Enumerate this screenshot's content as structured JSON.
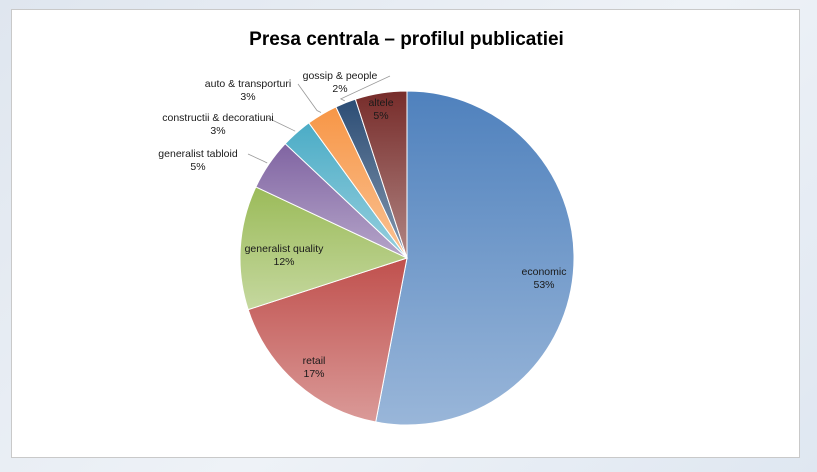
{
  "chart_data": {
    "type": "pie",
    "title": "Presa centrala – profilul publicatiei",
    "slices": [
      {
        "label": "economic",
        "value": 53,
        "display": "53%",
        "color": "#4f81bd"
      },
      {
        "label": "retail",
        "value": 17,
        "display": "17%",
        "color": "#c0504d"
      },
      {
        "label": "generalist quality",
        "value": 12,
        "display": "12%",
        "color": "#9bbb59"
      },
      {
        "label": "generalist tabloid",
        "value": 5,
        "display": "5%",
        "color": "#8064a2"
      },
      {
        "label": "constructii & decoratiuni",
        "value": 3,
        "display": "3%",
        "color": "#4bacc6"
      },
      {
        "label": "auto & transporturi",
        "value": 3,
        "display": "3%",
        "color": "#f79646"
      },
      {
        "label": "gossip & people",
        "value": 2,
        "display": "2%",
        "color": "#2c4d75"
      },
      {
        "label": "altele",
        "value": 5,
        "display": "5%",
        "color": "#772c2a"
      }
    ]
  }
}
